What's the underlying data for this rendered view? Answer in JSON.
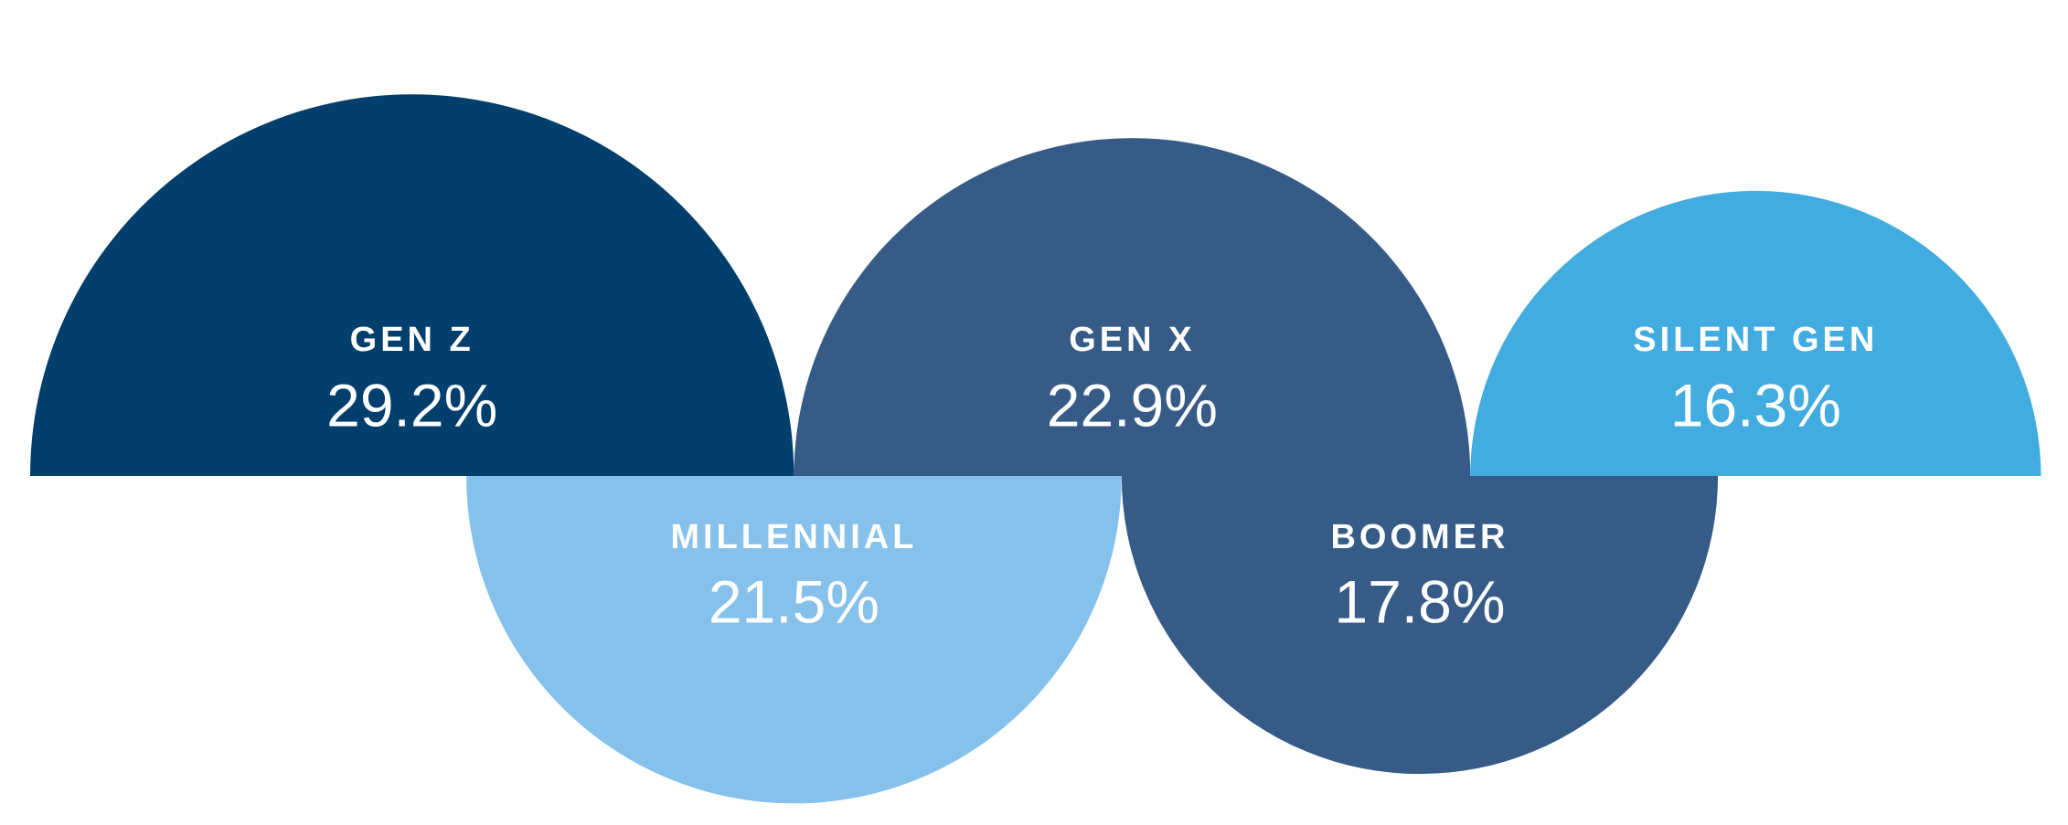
{
  "chart_data": {
    "type": "semicircle",
    "categories": [
      "GEN Z",
      "MILLENNIAL",
      "GEN X",
      "BOOMER",
      "SILENT GEN"
    ],
    "values": [
      29.2,
      21.5,
      22.9,
      17.8,
      16.3
    ],
    "value_labels": [
      "29.2%",
      "21.5%",
      "22.9%",
      "17.8%",
      "16.3%"
    ],
    "colors": [
      "#023f6c",
      "#85c1ea",
      "#365b87",
      "#365b87",
      "#42ace0"
    ]
  }
}
